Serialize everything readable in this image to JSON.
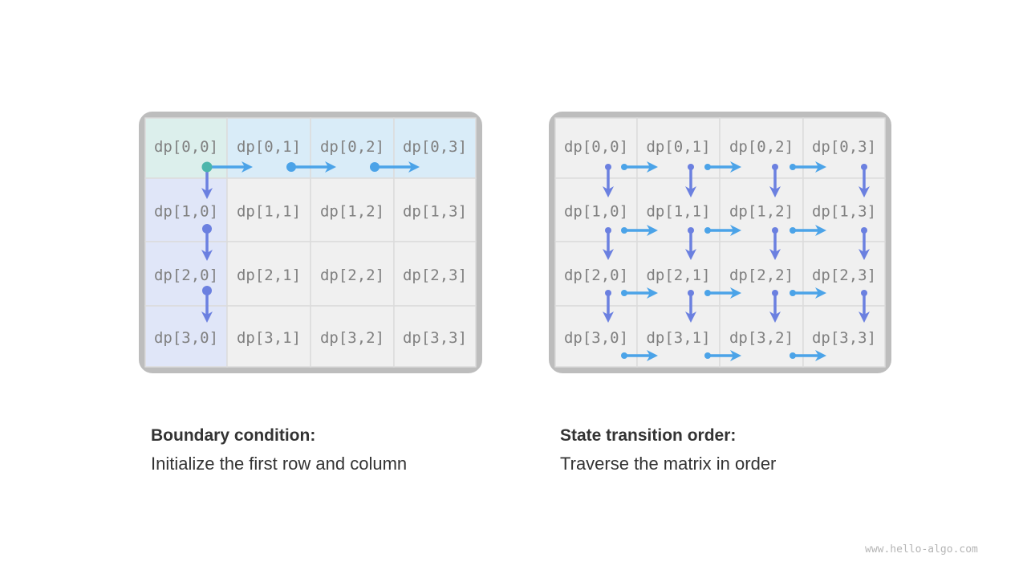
{
  "grid_labels": [
    [
      "dp[0,0]",
      "dp[0,1]",
      "dp[0,2]",
      "dp[0,3]"
    ],
    [
      "dp[1,0]",
      "dp[1,1]",
      "dp[1,2]",
      "dp[1,3]"
    ],
    [
      "dp[2,0]",
      "dp[2,1]",
      "dp[2,2]",
      "dp[2,3]"
    ],
    [
      "dp[3,0]",
      "dp[3,1]",
      "dp[3,2]",
      "dp[3,3]"
    ]
  ],
  "left_panel": {
    "caption_title": "Boundary condition:",
    "caption_text": "Initialize the first row and column"
  },
  "right_panel": {
    "caption_title": "State transition order:",
    "caption_text": "Traverse the matrix in order"
  },
  "watermark": "www.hello-algo.com",
  "colors": {
    "frame": "#bdbdbd",
    "cell": "#f0f0f0",
    "origin_cell": "#dcefec",
    "first_row": "#d9ecf8",
    "first_col": "#e0e6f8",
    "horizontal_arrow": "#4ba3e8",
    "vertical_arrow": "#6b80e0",
    "origin_dot": "#4db6ac",
    "text": "#808080"
  }
}
